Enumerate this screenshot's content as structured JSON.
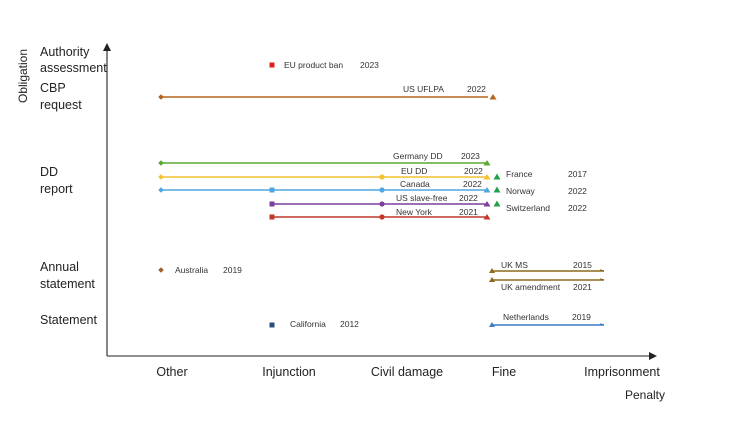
{
  "chart_data": {
    "type": "scatter",
    "xlabel": "Penalty",
    "ylabel": "Obligation",
    "x_categories": [
      "Other",
      "Injunction",
      "Civil damage",
      "Fine",
      "Imprisonment"
    ],
    "y_categories": [
      {
        "label": [
          "Authority",
          "assessment"
        ]
      },
      {
        "label": [
          "CBP",
          "request"
        ]
      },
      {
        "label": [
          "DD",
          "report"
        ]
      },
      {
        "label": [
          "Annual",
          "statement"
        ]
      },
      {
        "label": [
          "Statement"
        ]
      }
    ],
    "series": [
      {
        "name": "EU product ban",
        "year": "2023",
        "obligation": "Authority assessment",
        "x_from": "Injunction",
        "x_to": "Injunction",
        "color": "#e01b1b"
      },
      {
        "name": "US UFLPA",
        "year": "2022",
        "obligation": "CBP request",
        "x_from": "Other",
        "x_to": "Fine",
        "color": "#b5651d"
      },
      {
        "name": "Germany DD",
        "year": "2023",
        "obligation": "DD report",
        "x_from": "Other",
        "x_to": "Fine",
        "color": "#5aa832"
      },
      {
        "name": "EU DD",
        "year": "2022",
        "obligation": "DD report",
        "x_from": "Other",
        "x_to": "Fine",
        "color": "#f2c230"
      },
      {
        "name": "Canada",
        "year": "2022",
        "obligation": "DD report",
        "x_from": "Other",
        "x_to": "Fine",
        "color": "#4ea7e0"
      },
      {
        "name": "US slave-free",
        "year": "2022",
        "obligation": "DD report",
        "x_from": "Injunction",
        "x_to": "Fine",
        "color": "#7b3fa0"
      },
      {
        "name": "New York",
        "year": "2021",
        "obligation": "DD report",
        "x_from": "Injunction",
        "x_to": "Fine",
        "color": "#c0392b"
      },
      {
        "name": "France",
        "year": "2017",
        "obligation": "DD report",
        "x_from": "Fine",
        "x_to": "Fine",
        "color": "#22a04b"
      },
      {
        "name": "Norway",
        "year": "2022",
        "obligation": "DD report",
        "x_from": "Fine",
        "x_to": "Fine",
        "color": "#22a04b"
      },
      {
        "name": "Switzerland",
        "year": "2022",
        "obligation": "DD report",
        "x_from": "Fine",
        "x_to": "Fine",
        "color": "#22a04b"
      },
      {
        "name": "Australia",
        "year": "2019",
        "obligation": "Annual statement",
        "x_from": "Other",
        "x_to": "Other",
        "color": "#a0622d"
      },
      {
        "name": "UK MS",
        "year": "2015",
        "obligation": "Annual statement",
        "x_from": "Fine",
        "x_to": "Imprisonment",
        "color": "#8a6a1d"
      },
      {
        "name": "UK amendment",
        "year": "2021",
        "obligation": "Annual statement",
        "x_from": "Fine",
        "x_to": "Imprisonment",
        "color": "#8a6a1d"
      },
      {
        "name": "California",
        "year": "2012",
        "obligation": "Statement",
        "x_from": "Injunction",
        "x_to": "Injunction",
        "color": "#2c4f80"
      },
      {
        "name": "Netherlands",
        "year": "2019",
        "obligation": "Statement",
        "x_from": "Fine",
        "x_to": "Imprisonment",
        "color": "#3b7dc4"
      }
    ],
    "grid": false,
    "legend": "none"
  }
}
